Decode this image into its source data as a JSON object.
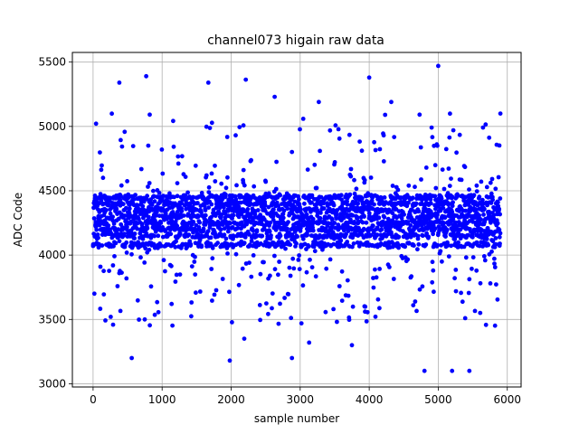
{
  "chart_data": {
    "type": "scatter",
    "title": "channel073 higain raw data",
    "xlabel": "sample number",
    "ylabel": "ADC Code",
    "xlim": [
      -300,
      6200
    ],
    "ylim": [
      2975,
      5575
    ],
    "x_ticks": [
      0,
      1000,
      2000,
      3000,
      4000,
      5000,
      6000
    ],
    "y_ticks": [
      3000,
      3500,
      4000,
      4500,
      5000,
      5500
    ],
    "grid": true,
    "marker_color": "#0000ff",
    "n_samples": 5900,
    "dense_levels": [
      4080,
      4150,
      4200,
      4250,
      4300,
      4350,
      4400,
      4450
    ],
    "notable_points": [
      {
        "x": 380,
        "y": 5340
      },
      {
        "x": 770,
        "y": 5390
      },
      {
        "x": 1670,
        "y": 5340
      },
      {
        "x": 2630,
        "y": 5230
      },
      {
        "x": 4000,
        "y": 5380
      },
      {
        "x": 5000,
        "y": 5470
      },
      {
        "x": 4320,
        "y": 5190
      },
      {
        "x": 3270,
        "y": 5190
      },
      {
        "x": 5900,
        "y": 5100
      },
      {
        "x": 560,
        "y": 3200
      },
      {
        "x": 1980,
        "y": 3180
      },
      {
        "x": 2880,
        "y": 3200
      },
      {
        "x": 4800,
        "y": 3100
      },
      {
        "x": 5200,
        "y": 3100
      },
      {
        "x": 5450,
        "y": 3100
      },
      {
        "x": 3130,
        "y": 3320
      },
      {
        "x": 2190,
        "y": 3350
      },
      {
        "x": 3750,
        "y": 3300
      }
    ]
  }
}
